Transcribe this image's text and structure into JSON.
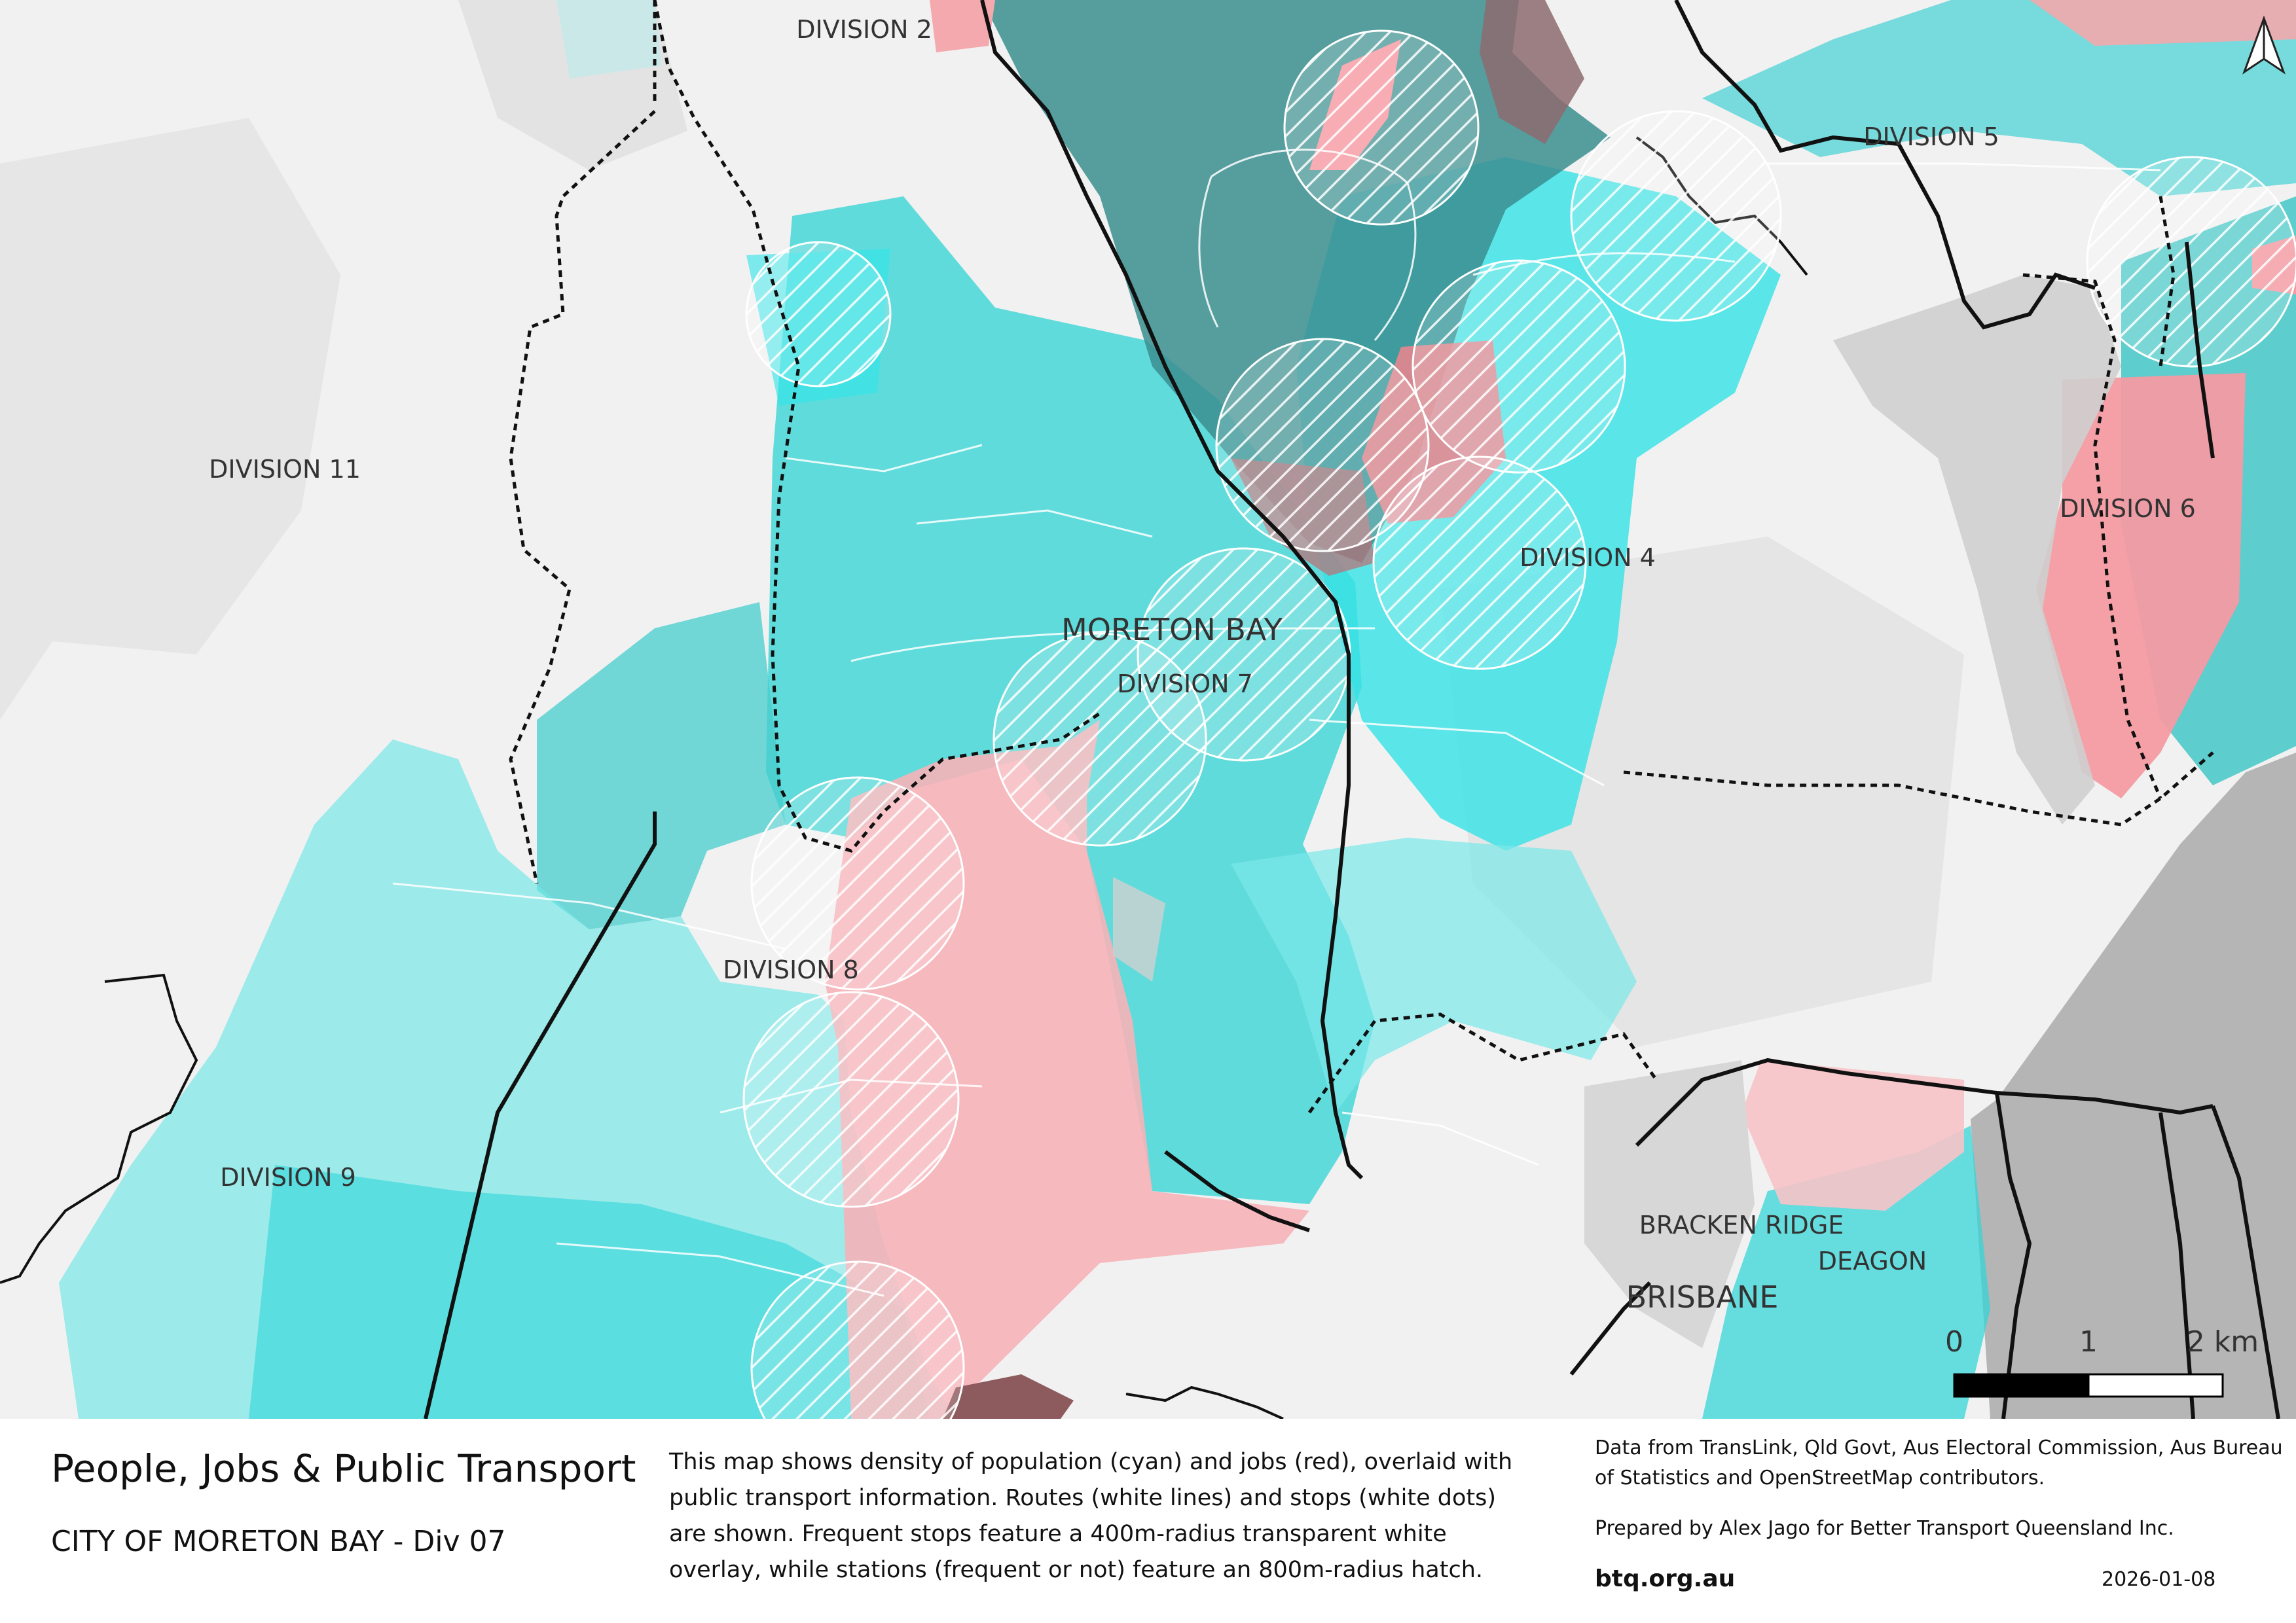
{
  "map_labels": {
    "division_2": "DIVISION 2",
    "division_5": "DIVISION 5",
    "division_11": "DIVISION 11",
    "division_6": "DIVISION 6",
    "division_4": "DIVISION 4",
    "moreton_bay": "MORETON BAY",
    "division_7": "DIVISION 7",
    "division_8": "DIVISION 8",
    "division_9": "DIVISION 9",
    "bracken_ridge": "BRACKEN RIDGE",
    "deagon": "DEAGON",
    "brisbane": "BRISBANE"
  },
  "scale_bar": {
    "tick_0": "0",
    "tick_1": "1",
    "tick_2": "2 km"
  },
  "footer": {
    "title": "People, Jobs & Public Transport",
    "subtitle": "CITY OF MORETON BAY - Div 07",
    "description": "This map shows density of population (cyan) and jobs (red), overlaid with public transport information. Routes (white lines) and stops (white dots) are shown. Frequent stops feature a 400m-radius transparent white overlay, while stations (frequent or not) feature an 800m-radius hatch.",
    "credits": "Data from TransLink,  Qld Govt,  Aus Electoral Commission, Aus Bureau of Statistics and OpenStreetMap contributors.",
    "prepared_by": "Prepared by Alex Jago for Better Transport Queensland Inc.",
    "website": "btq.org.au",
    "date": "2026-01-08"
  },
  "colors": {
    "population": "#35dedd",
    "jobs": "#f4a0a6",
    "boundary": "#111111",
    "sea": "#b5b5b5"
  }
}
